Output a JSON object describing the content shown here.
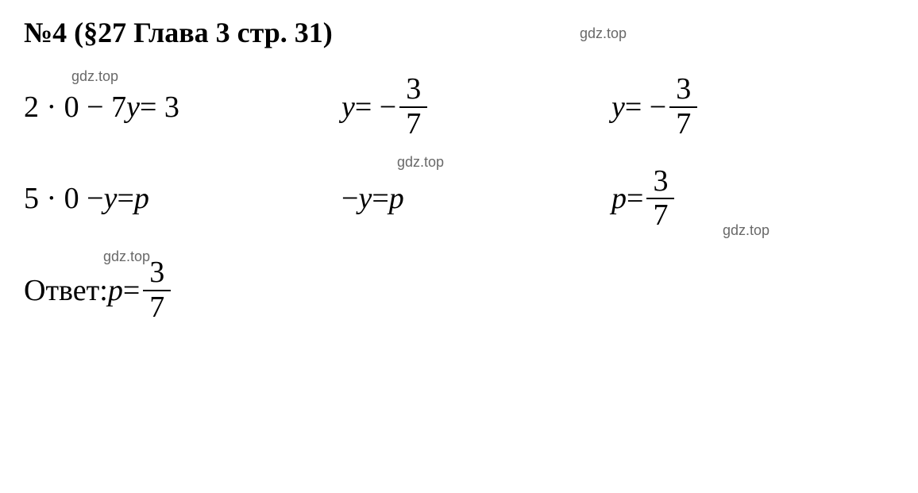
{
  "title": "№4 (§27 Глава 3  стр. 31)",
  "watermark": "gdz.top",
  "rows": [
    {
      "c1_prefix": "2 · 0 − 7",
      "c1_var": "y",
      "c1_suffix": " = 3",
      "c2_var": "y",
      "c2_eq": " = −",
      "c2_num": "3",
      "c2_den": "7",
      "c3_var": "y",
      "c3_eq": " = −",
      "c3_num": "3",
      "c3_den": "7"
    },
    {
      "c1_prefix": "5 · 0 − ",
      "c1_var": "y",
      "c1_suffix": " = ",
      "c1_var2": "p",
      "c2_prefix": "− ",
      "c2_var": "y",
      "c2_eq": " = ",
      "c2_var2": "p",
      "c3_var": "p",
      "c3_eq": " = ",
      "c3_num": "3",
      "c3_den": "7"
    }
  ],
  "answer": {
    "label": "Ответ: ",
    "var": "p",
    "eq": " = ",
    "num": "3",
    "den": "7"
  },
  "styling": {
    "background_color": "#ffffff",
    "text_color": "#000000",
    "watermark_color": "#696969",
    "title_fontsize": 36,
    "body_fontsize": 38,
    "watermark_fontsize": 18,
    "font_family": "Times New Roman",
    "fraction_rule_thickness": 2.5,
    "italic_vars": [
      "y",
      "p"
    ]
  }
}
